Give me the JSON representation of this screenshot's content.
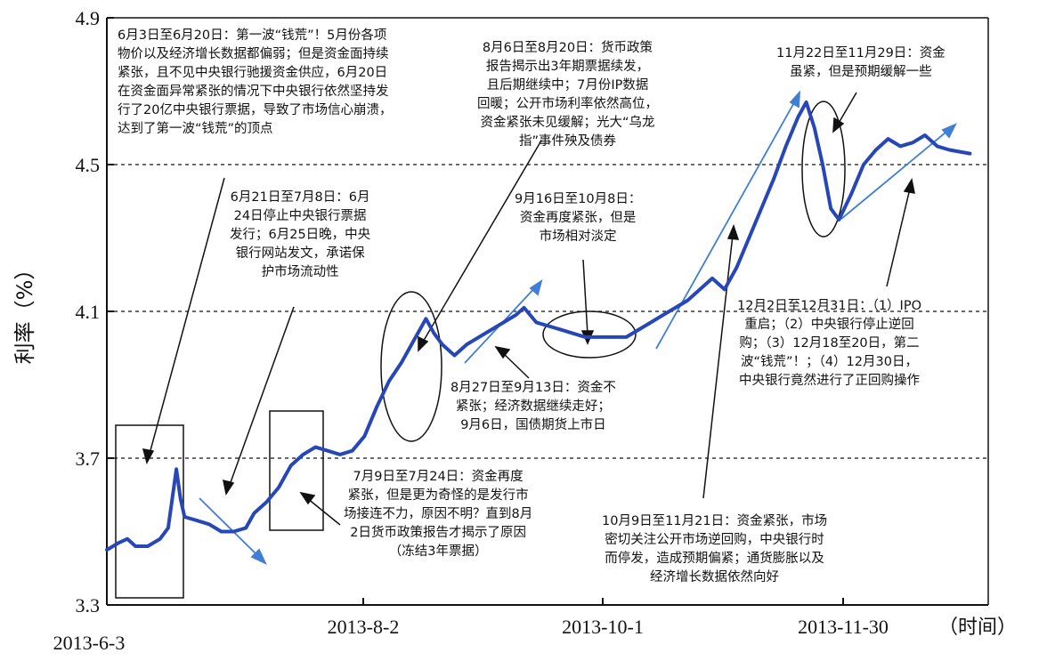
{
  "chart_data": {
    "type": "line",
    "title": "",
    "ylabel": "利率（%）",
    "xlabel": "（时间）",
    "ylim": [
      3.3,
      4.9
    ],
    "yticks": [
      "3.3",
      "3.7",
      "4.1",
      "4.5",
      "4.9"
    ],
    "xticks": [
      "2013-6-3",
      "2013-8-2",
      "2013-10-1",
      "2013-11-30"
    ],
    "reference_lines": [
      3.7,
      4.1,
      4.5
    ],
    "grid": false,
    "series": [
      {
        "color": "#2746b8",
        "points": [
          [
            "2013-06-03",
            3.45
          ],
          [
            "2013-06-06",
            3.47
          ],
          [
            "2013-06-08",
            3.48
          ],
          [
            "2013-06-10",
            3.46
          ],
          [
            "2013-06-13",
            3.46
          ],
          [
            "2013-06-16",
            3.48
          ],
          [
            "2013-06-18",
            3.51
          ],
          [
            "2013-06-20",
            3.67
          ],
          [
            "2013-06-21",
            3.59
          ],
          [
            "2013-06-22",
            3.54
          ],
          [
            "2013-06-25",
            3.53
          ],
          [
            "2013-06-28",
            3.52
          ],
          [
            "2013-07-01",
            3.5
          ],
          [
            "2013-07-04",
            3.5
          ],
          [
            "2013-07-07",
            3.51
          ],
          [
            "2013-07-09",
            3.55
          ],
          [
            "2013-07-12",
            3.58
          ],
          [
            "2013-07-15",
            3.62
          ],
          [
            "2013-07-18",
            3.68
          ],
          [
            "2013-07-21",
            3.71
          ],
          [
            "2013-07-24",
            3.73
          ],
          [
            "2013-07-27",
            3.72
          ],
          [
            "2013-07-30",
            3.71
          ],
          [
            "2013-08-02",
            3.72
          ],
          [
            "2013-08-05",
            3.76
          ],
          [
            "2013-08-08",
            3.84
          ],
          [
            "2013-08-11",
            3.91
          ],
          [
            "2013-08-14",
            3.96
          ],
          [
            "2013-08-17",
            4.02
          ],
          [
            "2013-08-20",
            4.08
          ],
          [
            "2013-08-22",
            4.04
          ],
          [
            "2013-08-24",
            4.01
          ],
          [
            "2013-08-27",
            3.98
          ],
          [
            "2013-08-30",
            4.01
          ],
          [
            "2013-09-02",
            4.03
          ],
          [
            "2013-09-05",
            4.05
          ],
          [
            "2013-09-08",
            4.07
          ],
          [
            "2013-09-11",
            4.09
          ],
          [
            "2013-09-13",
            4.11
          ],
          [
            "2013-09-16",
            4.07
          ],
          [
            "2013-09-19",
            4.06
          ],
          [
            "2013-09-22",
            4.05
          ],
          [
            "2013-09-25",
            4.04
          ],
          [
            "2013-09-28",
            4.03
          ],
          [
            "2013-10-01",
            4.03
          ],
          [
            "2013-10-04",
            4.03
          ],
          [
            "2013-10-08",
            4.03
          ],
          [
            "2013-10-11",
            4.05
          ],
          [
            "2013-10-14",
            4.07
          ],
          [
            "2013-10-17",
            4.09
          ],
          [
            "2013-10-20",
            4.11
          ],
          [
            "2013-10-23",
            4.13
          ],
          [
            "2013-10-26",
            4.16
          ],
          [
            "2013-10-29",
            4.19
          ],
          [
            "2013-11-01",
            4.16
          ],
          [
            "2013-11-04",
            4.22
          ],
          [
            "2013-11-07",
            4.3
          ],
          [
            "2013-11-10",
            4.38
          ],
          [
            "2013-11-13",
            4.46
          ],
          [
            "2013-11-16",
            4.55
          ],
          [
            "2013-11-19",
            4.63
          ],
          [
            "2013-11-21",
            4.67
          ],
          [
            "2013-11-23",
            4.6
          ],
          [
            "2013-11-25",
            4.5
          ],
          [
            "2013-11-27",
            4.38
          ],
          [
            "2013-11-29",
            4.35
          ],
          [
            "2013-12-02",
            4.42
          ],
          [
            "2013-12-05",
            4.5
          ],
          [
            "2013-12-08",
            4.54
          ],
          [
            "2013-12-11",
            4.57
          ],
          [
            "2013-12-14",
            4.55
          ],
          [
            "2013-12-17",
            4.56
          ],
          [
            "2013-12-20",
            4.58
          ],
          [
            "2013-12-23",
            4.55
          ],
          [
            "2013-12-26",
            4.54
          ],
          [
            "2013-12-31",
            4.53
          ]
        ]
      }
    ],
    "annotations": [
      {
        "lines": [
          "6月3日至6月20日：第一波“钱荒”！5月份各项",
          "物价以及经济增长数据都偏弱；但是资金面持续",
          "紧张，且不见中央银行驰援资金供应，6月20日",
          "在资金面异常紧张的情况下中央银行依然坚持发",
          "行了20亿中央银行票据，导致了市场信心崩溃，",
          "达到了第一波“钱荒”的顶点"
        ]
      },
      {
        "lines": [
          "6月21日至7月8日：6月",
          "24日停止中央银行票据",
          "发行；6月25日晚，中央",
          "银行网站发文，承诺保",
          "护市场流动性"
        ]
      },
      {
        "lines": [
          "7月9日至7月24日：资金再度",
          "紧张，但是更为奇怪的是发行市",
          "场接连不力，原因不明？直到8月",
          "2日货币政策报告才揭示了原因",
          "（冻结3年票据）"
        ]
      },
      {
        "lines": [
          "8月6日至8月20日：货币政策",
          "报告揭示出3年期票据续发，",
          "且后期继续中；7月份IP数据",
          "回暖；公开市场利率依然高位，",
          "资金紧张未见缓解；光大“乌龙",
          "指”事件殃及债券"
        ]
      },
      {
        "lines": [
          "9月16日至10月8日：",
          "资金再度紧张，但是",
          "市场相对淡定"
        ]
      },
      {
        "lines": [
          "8月27日至9月13日：资金不",
          "紧张；经济数据继续走好；",
          "9月6日，国债期货上市日"
        ]
      },
      {
        "lines": [
          "10月9日至11月21日：资金紧张，市场",
          "密切关注公开市场逆回购，中央银行时",
          "而停发，造成预期偏紧；通货膨胀以及",
          "经济增长数据依然向好"
        ]
      },
      {
        "lines": [
          "11月22日至11月29日：资金",
          "虽紧，但是预期缓解一些"
        ]
      },
      {
        "lines": [
          "12月2日至12月31日：（1）IPO",
          "重启；（2）中央银行停止逆回",
          "购；（3）12月18至20日，第二",
          "波“钱荒”！；（4）12月30日，",
          "中央银行竟然进行了正回购操作"
        ]
      }
    ]
  },
  "colors": {
    "line": "#2746b8",
    "arrow": "#3f7fd6",
    "ink": "#111111"
  }
}
